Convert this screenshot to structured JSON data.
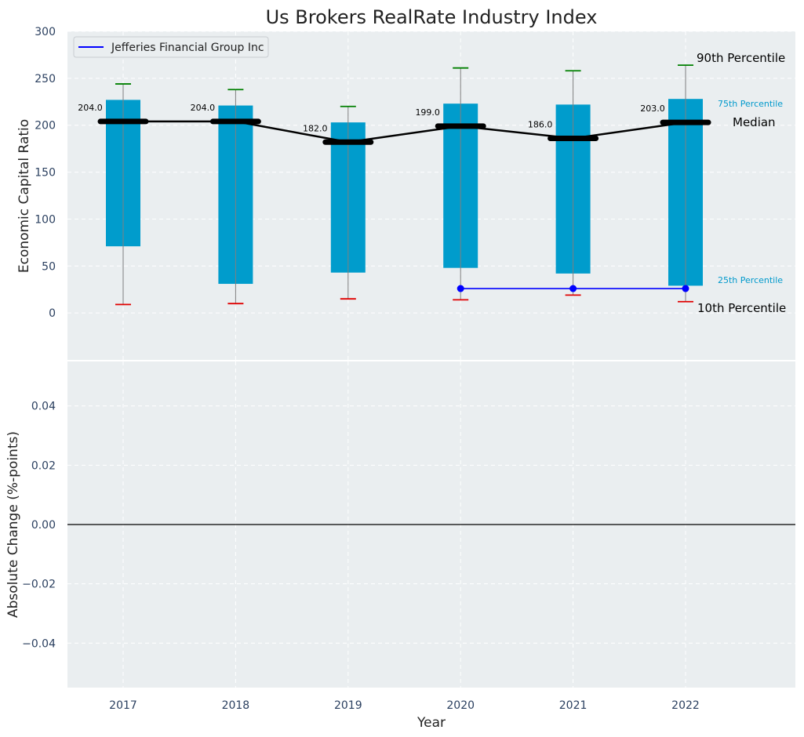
{
  "chart_data": {
    "type": "box",
    "title": "Us Brokers RealRate Industry Index",
    "xlabel": "Year",
    "categories": [
      "2017",
      "2018",
      "2019",
      "2020",
      "2021",
      "2022"
    ],
    "top_panel": {
      "ylabel": "Economic Capital Ratio",
      "ylim": [
        -50,
        300
      ],
      "yticks": [
        "0",
        "50",
        "100",
        "150",
        "200",
        "250",
        "300"
      ],
      "percentiles": {
        "p10": [
          9,
          10,
          15,
          14,
          19,
          12
        ],
        "p25": [
          71,
          31,
          43,
          48,
          42,
          29
        ],
        "median": [
          204,
          204,
          182,
          199,
          186,
          203
        ],
        "p75": [
          227,
          221,
          203,
          223,
          222,
          228
        ],
        "p90": [
          244,
          238,
          220,
          261,
          258,
          264
        ]
      },
      "median_labels": [
        "204.0",
        "204.0",
        "182.0",
        "199.0",
        "186.0",
        "203.0"
      ],
      "series": [
        {
          "name": "Jefferies Financial Group Inc",
          "x": [
            "2020",
            "2021",
            "2022"
          ],
          "values": [
            26,
            26,
            26
          ],
          "color": "#0000ff"
        }
      ],
      "annotations": {
        "p90": "90th Percentile",
        "p75": "75th Percentile",
        "median": "Median",
        "p25": "25th Percentile",
        "p10": "10th Percentile"
      },
      "legend_position": "top-left",
      "grid": true
    },
    "bottom_panel": {
      "ylabel": "Absolute Change (%-points)",
      "ylim": [
        -0.055,
        0.055
      ],
      "yticks": [
        "−0.04",
        "−0.02",
        "0.00",
        "0.02",
        "0.04"
      ],
      "zero_line": true,
      "grid": true
    },
    "colors": {
      "box": "#009ccc",
      "whisker": "#7f7f7f",
      "p90_cap": "#008000",
      "p10_cap": "#e00000",
      "median_line": "#000000",
      "panel_bg": "#eaeef0",
      "grid": "#ffffff",
      "label_75_25": "#0099cc",
      "tick_text": "#2a3f5f"
    }
  }
}
